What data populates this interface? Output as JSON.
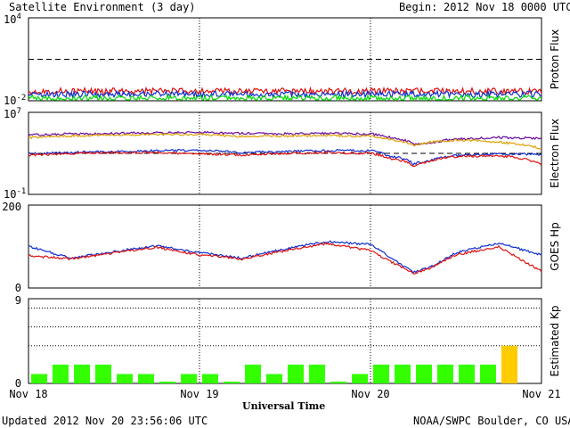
{
  "header": {
    "title": "Satellite Environment (3 day)",
    "begin_label": "Begin:",
    "begin_value": "2012 Nov 18 0000 UTC"
  },
  "footer": {
    "updated": "Updated 2012 Nov 20 23:56:06 UTC",
    "credit": "NOAA/SWPC Boulder, CO USA"
  },
  "x_axis": {
    "label": "Universal Time",
    "ticks": [
      "Nov 18",
      "Nov 19",
      "Nov 20",
      "Nov 21"
    ],
    "range_days": [
      0,
      3
    ]
  },
  "colors": {
    "red": "#e01010",
    "blue": "#1030d0",
    "green": "#00dd00",
    "orange": "#e0a000",
    "purple": "#6a0aa0",
    "kp_green": "#33ff00",
    "kp_yellow": "#ffcc00"
  },
  "chart_data": [
    {
      "type": "line",
      "name": "proton",
      "ylabel": "Proton Flux",
      "yscale": "log",
      "ylim": [
        0.01,
        10000
      ],
      "ytick_labels": [
        {
          "base": "10",
          "exp": "4"
        },
        {
          "base": "10",
          "exp": "-2"
        }
      ],
      "threshold": 10,
      "x": [
        0,
        0.25,
        0.5,
        0.75,
        1.0,
        1.25,
        1.5,
        1.75,
        2.0,
        2.25,
        2.5,
        2.75,
        3.0
      ],
      "series": [
        {
          "color": "red",
          "values": [
            0.05,
            0.05,
            0.05,
            0.05,
            0.05,
            0.05,
            0.05,
            0.05,
            0.05,
            0.05,
            0.05,
            0.05,
            0.05
          ]
        },
        {
          "color": "blue",
          "values": [
            0.03,
            0.03,
            0.03,
            0.03,
            0.03,
            0.03,
            0.03,
            0.03,
            0.03,
            0.03,
            0.03,
            0.03,
            0.03
          ]
        },
        {
          "color": "green",
          "values": [
            0.015,
            0.015,
            0.015,
            0.015,
            0.015,
            0.015,
            0.015,
            0.015,
            0.015,
            0.015,
            0.015,
            0.015,
            0.015
          ]
        }
      ]
    },
    {
      "type": "line",
      "name": "electron",
      "ylabel": "Electron Flux",
      "yscale": "log",
      "ylim": [
        0.1,
        10000000
      ],
      "ytick_labels": [
        {
          "base": "10",
          "exp": "7"
        },
        {
          "base": "10",
          "exp": "-1"
        }
      ],
      "threshold": 1000,
      "x": [
        0,
        0.25,
        0.5,
        0.75,
        1.0,
        1.25,
        1.5,
        1.75,
        2.0,
        2.1,
        2.25,
        2.35,
        2.5,
        2.75,
        3.0
      ],
      "series": [
        {
          "color": "purple",
          "values": [
            60000,
            80000,
            90000,
            100000,
            110000,
            90000,
            80000,
            90000,
            80000,
            40000,
            8000,
            10000,
            25000,
            35000,
            30000
          ]
        },
        {
          "color": "orange",
          "values": [
            35000,
            50000,
            60000,
            70000,
            70000,
            45000,
            50000,
            55000,
            45000,
            25000,
            5000,
            12000,
            20000,
            12000,
            3000
          ]
        },
        {
          "color": "blue",
          "values": [
            900,
            1200,
            1500,
            1800,
            2000,
            1200,
            1500,
            1900,
            1800,
            600,
            90,
            200,
            600,
            900,
            800
          ]
        },
        {
          "color": "red",
          "values": [
            700,
            900,
            1200,
            1200,
            900,
            700,
            1000,
            1200,
            1000,
            350,
            60,
            150,
            500,
            600,
            60
          ]
        }
      ]
    },
    {
      "type": "line",
      "name": "hp",
      "ylabel": "GOES Hp",
      "ylim": [
        0,
        200
      ],
      "ytick_labels": [
        "200",
        "0"
      ],
      "x": [
        0,
        0.25,
        0.5,
        0.75,
        1.0,
        1.25,
        1.5,
        1.75,
        2.0,
        2.25,
        2.35,
        2.5,
        2.75,
        3.0
      ],
      "series": [
        {
          "color": "blue",
          "values": [
            100,
            72,
            88,
            102,
            85,
            72,
            95,
            112,
            105,
            38,
            50,
            85,
            108,
            80
          ]
        },
        {
          "color": "red",
          "values": [
            78,
            70,
            85,
            98,
            80,
            70,
            90,
            108,
            90,
            35,
            48,
            80,
            100,
            40
          ]
        }
      ]
    },
    {
      "type": "bar",
      "name": "kp",
      "ylabel": "Estimated Kp",
      "ylim": [
        0,
        9
      ],
      "ytick_labels": [
        "9",
        "0"
      ],
      "gridlines": [
        4,
        6,
        8
      ],
      "bar_width_days": 0.125,
      "values": [
        1,
        2,
        2,
        2,
        1,
        1,
        0,
        1,
        1,
        0,
        2,
        1,
        2,
        2,
        0,
        1,
        2,
        2,
        2,
        2,
        2,
        2,
        4
      ],
      "bar_colors": [
        "kp_green",
        "kp_green",
        "kp_green",
        "kp_green",
        "kp_green",
        "kp_green",
        "kp_green",
        "kp_green",
        "kp_green",
        "kp_green",
        "kp_green",
        "kp_green",
        "kp_green",
        "kp_green",
        "kp_green",
        "kp_green",
        "kp_green",
        "kp_green",
        "kp_green",
        "kp_green",
        "kp_green",
        "kp_green",
        "kp_yellow"
      ]
    }
  ]
}
